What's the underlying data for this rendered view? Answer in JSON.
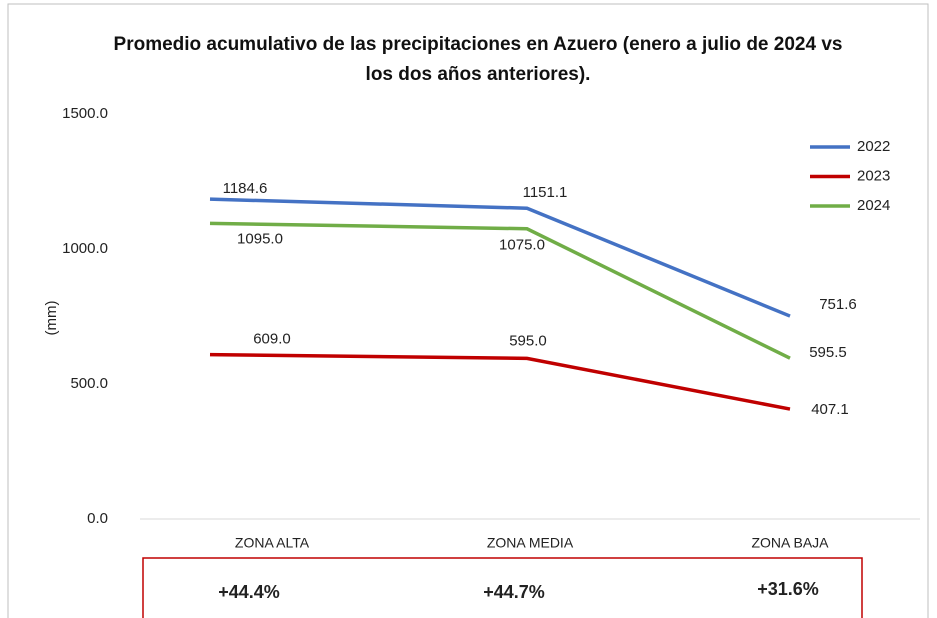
{
  "chart_data": {
    "type": "line",
    "title": "Promedio acumulativo de las precipitaciones en Azuero (enero a julio de 2024 vs los dos años anteriores).",
    "ylabel": "(mm)",
    "categories": [
      "ZONA ALTA",
      "ZONA MEDIA",
      "ZONA BAJA"
    ],
    "series": [
      {
        "name": "2022",
        "color": "#4472c4",
        "values": [
          1184.6,
          1151.1,
          751.6
        ],
        "value_labels": [
          "1184.6",
          "1151.1",
          "751.6"
        ]
      },
      {
        "name": "2023",
        "color": "#c00000",
        "values": [
          609,
          595,
          407.1
        ],
        "value_labels": [
          "609.0",
          "595.0",
          "407.1"
        ]
      },
      {
        "name": "2024",
        "color": "#70ad47",
        "values": [
          1095,
          1075,
          595.5
        ],
        "value_labels": [
          "1095.0",
          "1075.0",
          "595.5"
        ]
      }
    ],
    "ylim": [
      0,
      1500
    ],
    "yticks": [
      {
        "value": 0,
        "label": "0.0"
      },
      {
        "value": 500,
        "label": "500.0"
      },
      {
        "value": 1000,
        "label": "1000.0"
      },
      {
        "value": 1500,
        "label": "1500.0"
      }
    ],
    "legend": "right",
    "annotations": [
      "+44.4%",
      "+44.7%",
      "+31.6%"
    ]
  }
}
